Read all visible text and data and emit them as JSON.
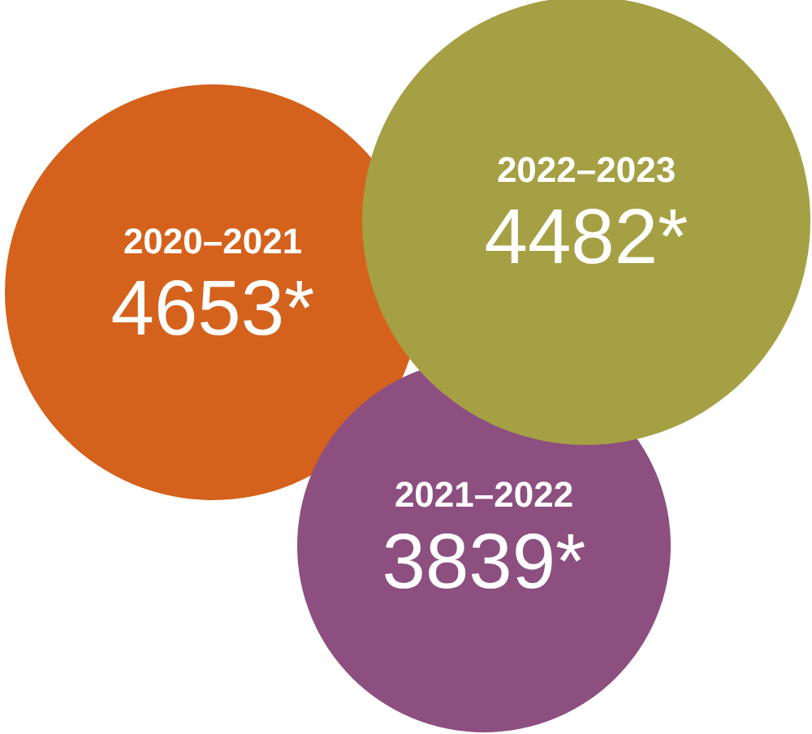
{
  "chart_data": {
    "type": "other",
    "categories": [
      "2020–2021",
      "2022–2023",
      "2021–2022"
    ],
    "values": [
      4653,
      4482,
      3839
    ],
    "value_labels": [
      "4653*",
      "4482*",
      "3839*"
    ],
    "colors": [
      "#d4621c",
      "#a5a044",
      "#8c4f80"
    ]
  }
}
